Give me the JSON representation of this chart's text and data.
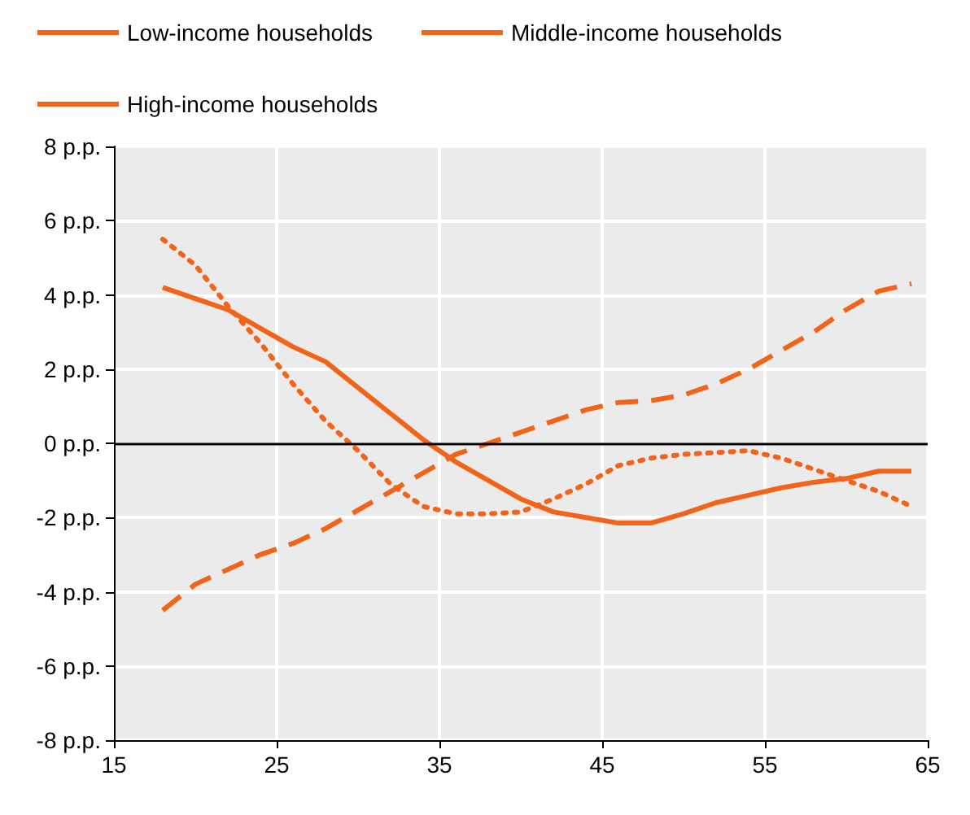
{
  "chart_data": {
    "type": "line",
    "x": [
      18,
      20,
      22,
      24,
      26,
      28,
      30,
      32,
      34,
      36,
      38,
      40,
      42,
      44,
      46,
      48,
      50,
      52,
      54,
      56,
      58,
      60,
      62,
      64
    ],
    "series": [
      {
        "name": "Low-income households",
        "color": "#f26419",
        "line_style": "solid",
        "values": [
          4.2,
          3.9,
          3.6,
          3.1,
          2.6,
          2.2,
          1.5,
          0.8,
          0.1,
          -0.5,
          -1.0,
          -1.5,
          -1.85,
          -2.0,
          -2.15,
          -2.15,
          -1.9,
          -1.6,
          -1.4,
          -1.2,
          -1.05,
          -0.95,
          -0.75,
          -0.75
        ]
      },
      {
        "name": "Middle-income households",
        "color": "#f26419",
        "line_style": "dotted",
        "values": [
          5.5,
          4.8,
          3.7,
          2.7,
          1.6,
          0.6,
          -0.2,
          -1.1,
          -1.7,
          -1.9,
          -1.9,
          -1.85,
          -1.5,
          -1.1,
          -0.6,
          -0.4,
          -0.3,
          -0.25,
          -0.2,
          -0.4,
          -0.7,
          -1.0,
          -1.3,
          -1.7
        ]
      },
      {
        "name": "High-income households",
        "color": "#f26419",
        "line_style": "dashed",
        "values": [
          -4.5,
          -3.8,
          -3.4,
          -3.0,
          -2.7,
          -2.3,
          -1.8,
          -1.3,
          -0.8,
          -0.3,
          0.0,
          0.3,
          0.6,
          0.9,
          1.1,
          1.15,
          1.3,
          1.6,
          2.0,
          2.5,
          3.0,
          3.6,
          4.1,
          4.3
        ]
      }
    ],
    "xlim": [
      15,
      65
    ],
    "xticks": [
      15,
      25,
      35,
      45,
      55,
      65
    ],
    "ylim": [
      -8,
      8
    ],
    "yticks": [
      {
        "value": -8,
        "label": "-8 p.p."
      },
      {
        "value": -6,
        "label": "-6 p.p."
      },
      {
        "value": -4,
        "label": "-4 p.p."
      },
      {
        "value": -2,
        "label": "-2 p.p."
      },
      {
        "value": 0,
        "label": "0 p.p."
      },
      {
        "value": 2,
        "label": "2 p.p."
      },
      {
        "value": 4,
        "label": "4 p.p."
      },
      {
        "value": 6,
        "label": "6 p.p."
      },
      {
        "value": 8,
        "label": "8 p.p."
      }
    ],
    "ref_lines": [
      {
        "axis": "y",
        "value": 0,
        "color": "#000000"
      }
    ],
    "grid": true,
    "legend": "top",
    "marker": "none"
  }
}
